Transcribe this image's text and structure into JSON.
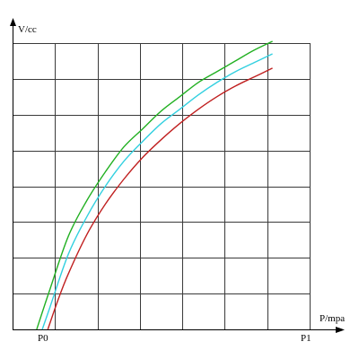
{
  "chart_data": {
    "type": "line",
    "ylabel": "V/cc",
    "xlabel": "P/mpa",
    "x_tick_labels": {
      "p0": "P0",
      "p1": "P1"
    },
    "xlim": [
      0,
      8
    ],
    "ylim": [
      0,
      8
    ],
    "grid": true,
    "x_grid_divisions": 7,
    "y_grid_divisions": 8,
    "series": [
      {
        "color": "#22b022",
        "x": [
          0.65,
          1.0,
          1.5,
          2.0,
          2.5,
          3.0,
          3.5,
          4.0,
          4.5,
          5.0,
          5.5,
          6.0,
          6.5,
          7.0
        ],
        "y": [
          0.0,
          1.1,
          2.6,
          3.6,
          4.4,
          5.1,
          5.6,
          6.1,
          6.5,
          6.9,
          7.2,
          7.5,
          7.8,
          8.05
        ]
      },
      {
        "color": "#33d0e0",
        "x": [
          0.8,
          1.0,
          1.5,
          2.0,
          2.5,
          3.0,
          3.5,
          4.0,
          4.5,
          5.0,
          5.5,
          6.0,
          6.5,
          7.0
        ],
        "y": [
          0.0,
          0.6,
          2.1,
          3.15,
          4.0,
          4.7,
          5.25,
          5.75,
          6.15,
          6.55,
          6.9,
          7.2,
          7.45,
          7.7
        ]
      },
      {
        "color": "#c02020",
        "x": [
          0.95,
          1.2,
          1.5,
          2.0,
          2.5,
          3.0,
          3.5,
          4.0,
          4.5,
          5.0,
          5.5,
          6.0,
          6.5,
          7.0
        ],
        "y": [
          0.0,
          0.75,
          1.55,
          2.65,
          3.5,
          4.2,
          4.8,
          5.3,
          5.75,
          6.15,
          6.5,
          6.8,
          7.05,
          7.3
        ]
      }
    ]
  }
}
